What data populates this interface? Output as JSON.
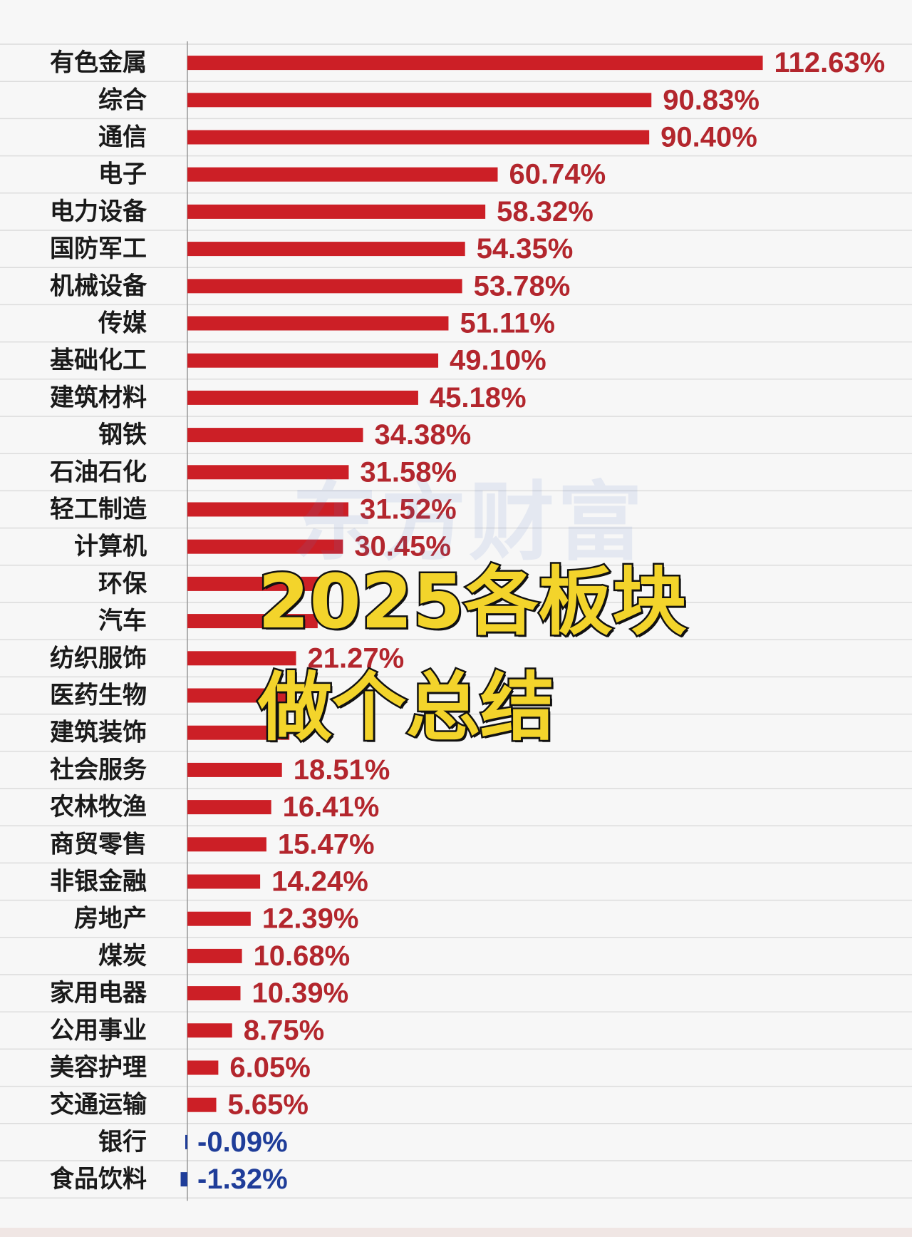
{
  "overlay": {
    "line1": "2025各板块",
    "line2": "做个总结"
  },
  "watermark": "东方财富",
  "chart_data": {
    "type": "bar",
    "orientation": "horizontal",
    "categories": [
      "有色金属",
      "综合",
      "通信",
      "电子",
      "电力设备",
      "国防军工",
      "机械设备",
      "传媒",
      "基础化工",
      "建筑材料",
      "钢铁",
      "石油石化",
      "轻工制造",
      "计算机",
      "环保",
      "汽车",
      "纺织服饰",
      "医药生物",
      "建筑装饰",
      "社会服务",
      "农林牧渔",
      "商贸零售",
      "非银金融",
      "房地产",
      "煤炭",
      "家用电器",
      "公用事业",
      "美容护理",
      "交通运输",
      "银行",
      "食品饮料"
    ],
    "values": [
      112.63,
      90.83,
      90.4,
      60.74,
      58.32,
      54.35,
      53.78,
      51.11,
      49.1,
      45.18,
      34.38,
      31.58,
      31.52,
      30.45,
      28.0,
      25.5,
      21.27,
      20.17,
      19.97,
      18.51,
      16.41,
      15.47,
      14.24,
      12.39,
      10.68,
      10.39,
      8.75,
      6.05,
      5.65,
      -0.09,
      -1.32
    ],
    "value_labels": [
      "112.63%",
      "90.83%",
      "90.40%",
      "60.74%",
      "58.32%",
      "54.35%",
      "53.78%",
      "51.11%",
      "49.10%",
      "45.18%",
      "34.38%",
      "31.58%",
      "31.52%",
      "30.45%",
      "",
      "",
      "21.27%",
      "",
      "",
      "18.51%",
      "16.41%",
      "15.47%",
      "14.24%",
      "12.39%",
      "10.68%",
      "10.39%",
      "8.75%",
      "6.05%",
      "5.65%",
      "-0.09%",
      "-1.32%"
    ],
    "colors": {
      "positive": "#cc1f26",
      "positive_text": "#b3262d",
      "negative": "#1f3d99",
      "gridline": "#dcdcdc",
      "axis": "#999999"
    }
  }
}
